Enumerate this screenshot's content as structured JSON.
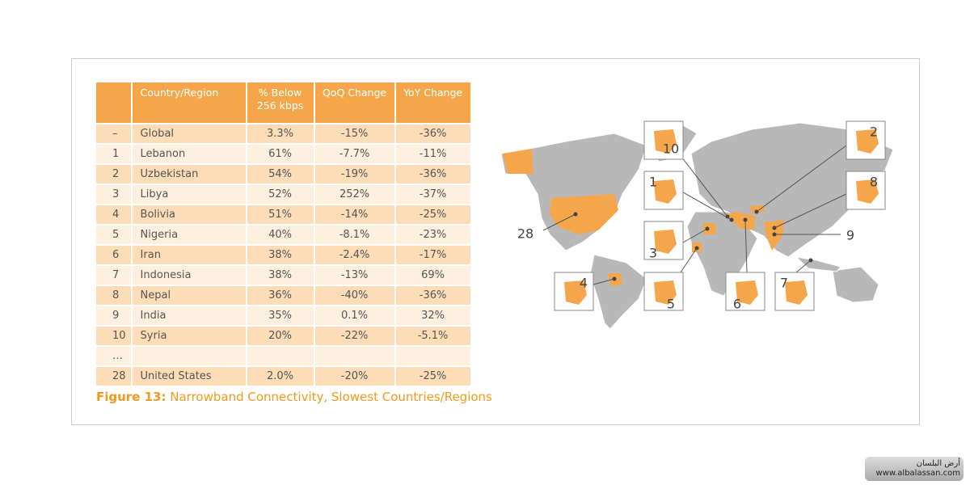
{
  "table": {
    "headers": [
      "Country/Region",
      "% Below 256 kbps",
      "QoQ Change",
      "YoY Change"
    ],
    "rows": [
      [
        "–",
        "Global",
        "3.3%",
        "-15%",
        "-36%"
      ],
      [
        "1",
        "Lebanon",
        "61%",
        "-7.7%",
        "-11%"
      ],
      [
        "2",
        "Uzbekistan",
        "54%",
        "-19%",
        "-36%"
      ],
      [
        "3",
        "Libya",
        "52%",
        "252%",
        "-37%"
      ],
      [
        "4",
        "Bolivia",
        "51%",
        "-14%",
        "-25%"
      ],
      [
        "5",
        "Nigeria",
        "40%",
        "-8.1%",
        "-23%"
      ],
      [
        "6",
        "Iran",
        "38%",
        "-2.4%",
        "-17%"
      ],
      [
        "7",
        "Indonesia",
        "38%",
        "-13%",
        "69%"
      ],
      [
        "8",
        "Nepal",
        "36%",
        "-40%",
        "-36%"
      ],
      [
        "9",
        "India",
        "35%",
        "0.1%",
        "32%"
      ],
      [
        "10",
        "Syria",
        "20%",
        "-22%",
        "-5.1%"
      ],
      [
        "…"
      ],
      [
        "28",
        "United States",
        "2.0%",
        "-20%",
        "-25%"
      ]
    ]
  },
  "caption": {
    "label": "Figure 13:",
    "text": "Narrowband Connectivity, Slowest Countries/Regions"
  },
  "map": {
    "callouts": [
      "10",
      "1",
      "3",
      "4",
      "5",
      "6",
      "7",
      "2",
      "8",
      "9",
      "28"
    ]
  },
  "watermark": {
    "name": "أرض البلسان",
    "url": "www.albalassan.com"
  }
}
